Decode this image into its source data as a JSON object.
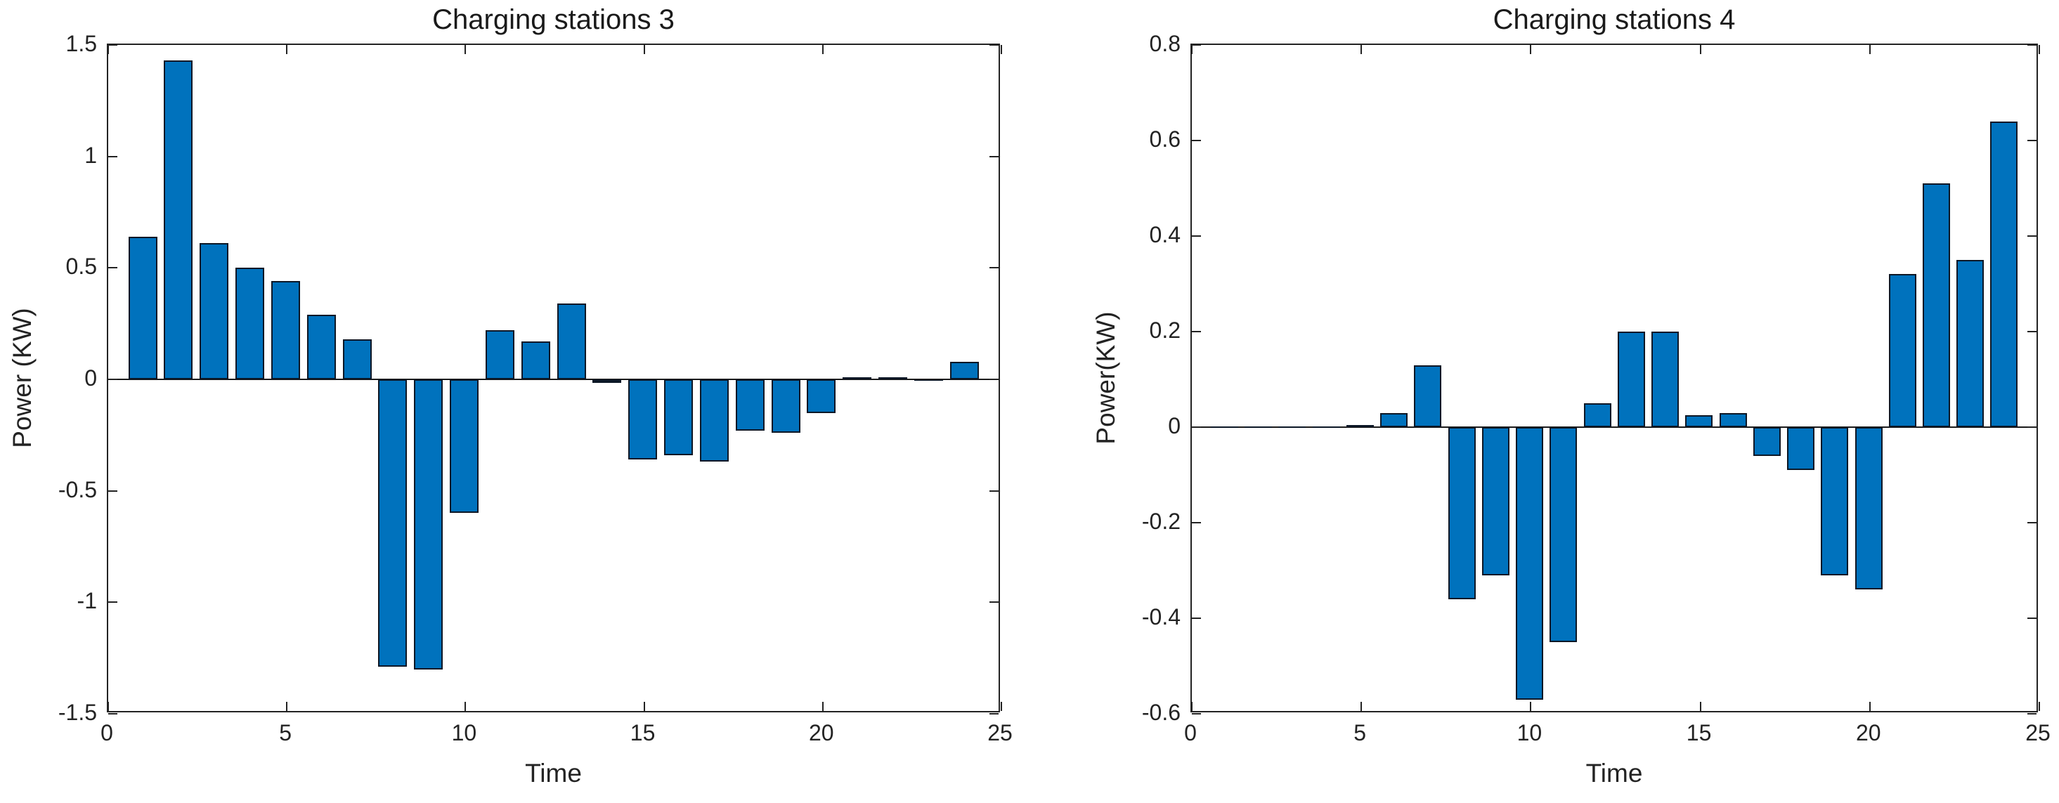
{
  "figure": {
    "background": "#ffffff",
    "bar_fill": "#0072BD",
    "bar_edge": "#0b1726",
    "axis_color": "#232323"
  },
  "chart_data": [
    {
      "type": "bar",
      "title": "Charging stations 3",
      "xlabel": "Time",
      "ylabel": "Power（KW）",
      "xlim": [
        0,
        25
      ],
      "ylim": [
        -1.5,
        1.5
      ],
      "xticks": [
        0,
        5,
        10,
        15,
        20,
        25
      ],
      "xtick_labels": [
        "0",
        "5",
        "10",
        "15",
        "20",
        "25"
      ],
      "yticks": [
        1.5,
        1,
        0.5,
        0,
        -0.5,
        -1,
        -1.5
      ],
      "ytick_labels": [
        "1.5",
        "1",
        "0.5",
        "0",
        "-0.5",
        "-1",
        "-1.5"
      ],
      "grid": false,
      "legend": null,
      "x": [
        1,
        2,
        3,
        4,
        5,
        6,
        7,
        8,
        9,
        10,
        11,
        12,
        13,
        14,
        15,
        16,
        17,
        18,
        19,
        20,
        21,
        22,
        23,
        24
      ],
      "values": [
        0.64,
        1.43,
        0.61,
        0.5,
        0.44,
        0.29,
        0.18,
        -1.29,
        -1.3,
        -0.6,
        0.22,
        0.17,
        0.34,
        -0.015,
        -0.36,
        -0.34,
        -0.37,
        -0.23,
        -0.24,
        -0.15,
        0.01,
        0.01,
        -0.005,
        0.08
      ]
    },
    {
      "type": "bar",
      "title": "Charging stations 4",
      "xlabel": "Time",
      "ylabel": "Power(KW)",
      "xlim": [
        0,
        25
      ],
      "ylim": [
        -0.6,
        0.8
      ],
      "xticks": [
        0,
        5,
        10,
        15,
        20,
        25
      ],
      "xtick_labels": [
        "0",
        "5",
        "10",
        "15",
        "20",
        "25"
      ],
      "yticks": [
        0.8,
        0.6,
        0.4,
        0.2,
        0,
        -0.2,
        -0.4,
        -0.6
      ],
      "ytick_labels": [
        "0.8",
        "0.6",
        "0.4",
        "0.2",
        "0",
        "-0.2",
        "-0.4",
        "-0.6"
      ],
      "grid": false,
      "legend": null,
      "x": [
        1,
        2,
        3,
        4,
        5,
        6,
        7,
        8,
        9,
        10,
        11,
        12,
        13,
        14,
        15,
        16,
        17,
        18,
        19,
        20,
        21,
        22,
        23,
        24
      ],
      "values": [
        0.002,
        0.002,
        0.002,
        0.002,
        0.005,
        0.03,
        0.13,
        -0.36,
        -0.31,
        -0.57,
        -0.45,
        0.05,
        0.2,
        0.2,
        0.025,
        0.03,
        -0.06,
        -0.09,
        -0.31,
        -0.34,
        0.32,
        0.51,
        0.35,
        0.64
      ]
    }
  ]
}
